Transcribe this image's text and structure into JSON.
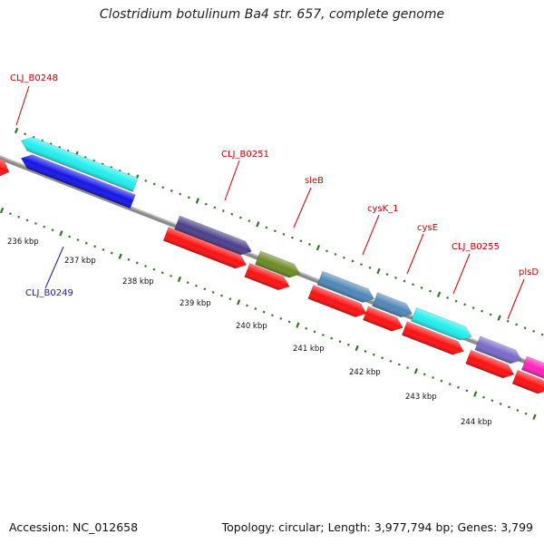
{
  "title": "Clostridium botulinum Ba4 str. 657, complete genome",
  "footer": {
    "accession": "Accession: NC_012658",
    "topology": "Topology: circular; Length: 3,977,794 bp; Genes: 3,799"
  },
  "colors": {
    "background": "#ffffff",
    "backbone": "#8c8c8c",
    "tick": "#2a7a1e",
    "label_red": "#cc0000",
    "label_blue": "#1a1aa8",
    "cds_red": "#ff1010"
  },
  "kbp_labels": [
    "236 kbp",
    "237 kbp",
    "238 kbp",
    "239 kbp",
    "240 kbp",
    "241 kbp",
    "242 kbp",
    "243 kbp",
    "244 kbp"
  ],
  "gene_labels": [
    {
      "text": "CLJ_B0248",
      "color": "#cc0000"
    },
    {
      "text": "CLJ_B0249",
      "color": "#1a1aa8"
    },
    {
      "text": "CLJ_B0251",
      "color": "#cc0000"
    },
    {
      "text": "sleB",
      "color": "#cc0000"
    },
    {
      "text": "cysK_1",
      "color": "#cc0000"
    },
    {
      "text": "cysE",
      "color": "#cc0000"
    },
    {
      "text": "CLJ_B0255",
      "color": "#cc0000"
    },
    {
      "text": "plsD",
      "color": "#cc0000"
    }
  ],
  "features": [
    {
      "name": "CLJ_B0248 feature",
      "color": "#ff1010",
      "strand": "forward"
    },
    {
      "name": "CLJ_B0249 feature",
      "color": "#1515e8",
      "strand": "reverse"
    },
    {
      "name": "CLJ_B0249 cds",
      "color": "#22eeee",
      "strand": "reverse"
    },
    {
      "name": "CLJ_B0251 feature",
      "color": "#4a3f8a",
      "strand": "forward"
    },
    {
      "name": "CLJ_B0251 cds",
      "color": "#ff1010",
      "strand": "forward"
    },
    {
      "name": "sleB feature",
      "color": "#6b8a23",
      "strand": "forward"
    },
    {
      "name": "sleB cds",
      "color": "#ff1010",
      "strand": "forward"
    },
    {
      "name": "cysK_1 feature",
      "color": "#4f86b8",
      "strand": "forward"
    },
    {
      "name": "cysK_1 cds",
      "color": "#ff1010",
      "strand": "forward"
    },
    {
      "name": "cysE feature",
      "color": "#4f86b8",
      "strand": "forward"
    },
    {
      "name": "cysE cds",
      "color": "#ff1010",
      "strand": "forward"
    },
    {
      "name": "CLJ_B0255 feature",
      "color": "#22eeee",
      "strand": "forward"
    },
    {
      "name": "CLJ_B0255 cds",
      "color": "#ff1010",
      "strand": "forward"
    },
    {
      "name": "plsD feature",
      "color": "#7b68c8",
      "strand": "forward"
    },
    {
      "name": "plsD cds",
      "color": "#ff1010",
      "strand": "forward"
    },
    {
      "name": "next feature",
      "color": "#ff22bb",
      "strand": "forward"
    },
    {
      "name": "next cds",
      "color": "#ff1010",
      "strand": "forward"
    }
  ]
}
